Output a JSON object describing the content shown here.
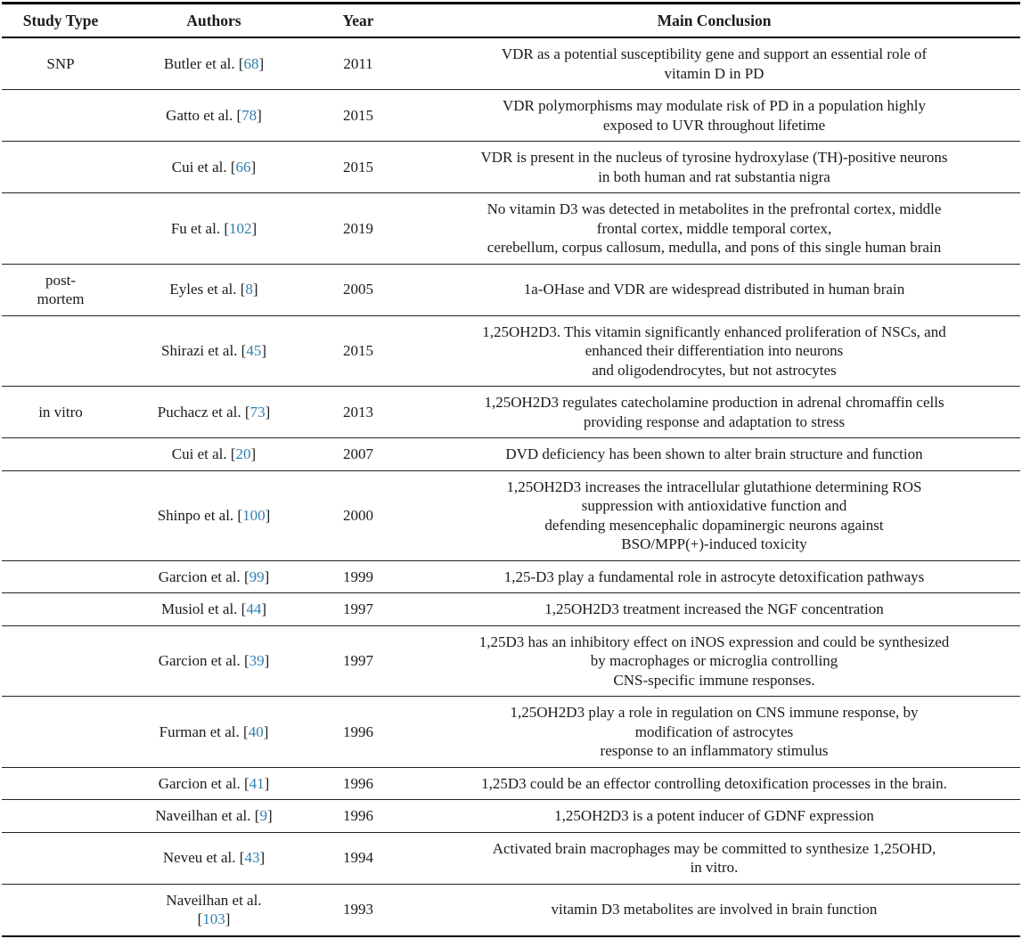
{
  "colors": {
    "citation_link": "#2f7fb0",
    "text": "#1b1b1b",
    "rule": "#000000",
    "background": "#ffffff"
  },
  "table": {
    "headers": [
      "Study Type",
      "Authors",
      "Year",
      "Main Conclusion"
    ],
    "rows": [
      {
        "study_type": "SNP",
        "author_prefix": "Butler et al. [",
        "citation": "68",
        "author_suffix": "]",
        "year": "2011",
        "conclusion": "VDR as a potential susceptibility gene and support an essential role of\nvitamin D in PD"
      },
      {
        "study_type": "",
        "author_prefix": "Gatto et al. [",
        "citation": "78",
        "author_suffix": "]",
        "year": "2015",
        "conclusion": "VDR polymorphisms may modulate risk of PD in a population highly\nexposed to UVR throughout lifetime"
      },
      {
        "study_type": "",
        "author_prefix": "Cui et al. [",
        "citation": "66",
        "author_suffix": "]",
        "year": "2015",
        "conclusion": "VDR is present in the nucleus of tyrosine hydroxylase (TH)-positive neurons\nin both human and rat substantia nigra"
      },
      {
        "study_type": "",
        "author_prefix": "Fu et al. [",
        "citation": "102",
        "author_suffix": "]",
        "year": "2019",
        "conclusion": "No vitamin D3 was detected in metabolites in the prefrontal cortex, middle\nfrontal cortex, middle temporal cortex,\ncerebellum, corpus callosum, medulla, and pons of this single human brain"
      },
      {
        "study_type": "post-\nmortem",
        "author_prefix": "Eyles et al. [",
        "citation": "8",
        "author_suffix": "]",
        "year": "2005",
        "conclusion": "1a-OHase and VDR are widespread distributed in human brain"
      },
      {
        "study_type": "",
        "author_prefix": "Shirazi et al. [",
        "citation": "45",
        "author_suffix": "]",
        "year": "2015",
        "conclusion": "1,25OH2D3. This vitamin significantly enhanced proliferation of NSCs, and\nenhanced their differentiation into neurons\nand oligodendrocytes, but not astrocytes"
      },
      {
        "study_type": "in vitro",
        "author_prefix": "Puchacz et al. [",
        "citation": "73",
        "author_suffix": "]",
        "year": "2013",
        "conclusion": "1,25OH2D3 regulates catecholamine production in adrenal chromaffin cells\nproviding response and adaptation to stress"
      },
      {
        "study_type": "",
        "author_prefix": "Cui et al. [",
        "citation": "20",
        "author_suffix": "]",
        "year": "2007",
        "conclusion": "DVD deficiency has been shown to alter brain structure and function"
      },
      {
        "study_type": "",
        "author_prefix": "Shinpo et al. [",
        "citation": "100",
        "author_suffix": "]",
        "year": "2000",
        "conclusion": "1,25OH2D3 increases the intracellular glutathione determining ROS\nsuppression with antioxidative function and\ndefending mesencephalic dopaminergic neurons against\nBSO/MPP(+)-induced toxicity"
      },
      {
        "study_type": "",
        "author_prefix": "Garcion et al. [",
        "citation": "99",
        "author_suffix": "]",
        "year": "1999",
        "conclusion": "1,25-D3 play a fundamental role in astrocyte detoxification pathways"
      },
      {
        "study_type": "",
        "author_prefix": "Musiol et al. [",
        "citation": "44",
        "author_suffix": "]",
        "year": "1997",
        "conclusion": "1,25OH2D3 treatment increased the NGF concentration"
      },
      {
        "study_type": "",
        "author_prefix": "Garcion et al. [",
        "citation": "39",
        "author_suffix": "]",
        "year": "1997",
        "conclusion": "1,25D3 has an inhibitory effect on iNOS expression and could be synthesized\nby macrophages or microglia controlling\nCNS-specific immune responses."
      },
      {
        "study_type": "",
        "author_prefix": "Furman et al. [",
        "citation": "40",
        "author_suffix": "]",
        "year": "1996",
        "conclusion": "1,25OH2D3 play a role in regulation on CNS immune response, by\nmodification of astrocytes\nresponse to an inflammatory stimulus"
      },
      {
        "study_type": "",
        "author_prefix": "Garcion et al. [",
        "citation": "41",
        "author_suffix": "]",
        "year": "1996",
        "conclusion": "1,25D3 could be an effector controlling detoxification processes in the brain."
      },
      {
        "study_type": "",
        "author_prefix": "Naveilhan et al. [",
        "citation": "9",
        "author_suffix": "]",
        "year": "1996",
        "conclusion": "1,25OH2D3 is a potent inducer of GDNF expression"
      },
      {
        "study_type": "",
        "author_prefix": "Neveu et al. [",
        "citation": "43",
        "author_suffix": "]",
        "year": "1994",
        "conclusion": "Activated brain macrophages may be committed to synthesize 1,25OHD,\nin vitro."
      },
      {
        "study_type": "",
        "author_prefix": "Naveilhan et al.\n[",
        "citation": "103",
        "author_suffix": "]",
        "year": "1993",
        "conclusion": "vitamin D3 metabolites are involved in brain function"
      }
    ]
  }
}
